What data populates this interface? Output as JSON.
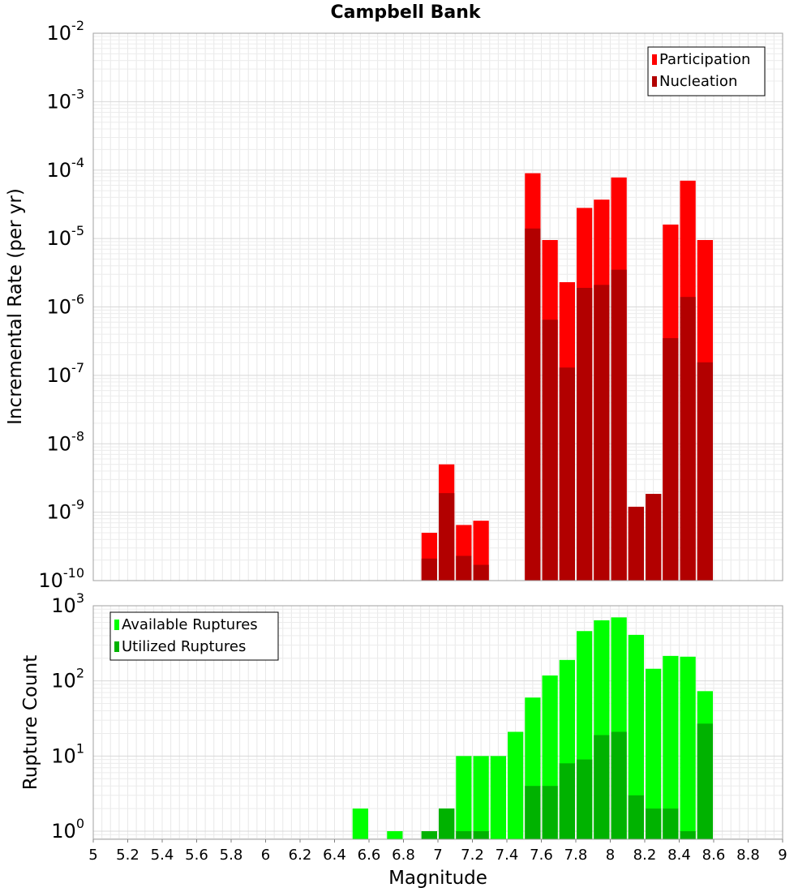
{
  "chart_data": [
    {
      "type": "bar",
      "title": "Campbell Bank",
      "xlabel": "",
      "ylabel": "Incremental Rate (per yr)",
      "xlim": [
        5,
        9
      ],
      "ylim": [
        1e-10,
        0.01
      ],
      "yscale": "log",
      "bin_width": 0.1,
      "grid": true,
      "legend_position": "top-right",
      "y_ticks": [
        {
          "base": "10",
          "exp": "-10"
        },
        {
          "base": "10",
          "exp": "-9"
        },
        {
          "base": "10",
          "exp": "-8"
        },
        {
          "base": "10",
          "exp": "-7"
        },
        {
          "base": "10",
          "exp": "-6"
        },
        {
          "base": "10",
          "exp": "-5"
        },
        {
          "base": "10",
          "exp": "-4"
        },
        {
          "base": "10",
          "exp": "-3"
        },
        {
          "base": "10",
          "exp": "-2"
        }
      ],
      "series": [
        {
          "name": "Participation",
          "color": "#ff0000",
          "points": [
            {
              "x": 6.95,
              "y": 5e-10
            },
            {
              "x": 7.05,
              "y": 5e-09
            },
            {
              "x": 7.15,
              "y": 6.5e-10
            },
            {
              "x": 7.25,
              "y": 7.5e-10
            },
            {
              "x": 7.55,
              "y": 9e-05
            },
            {
              "x": 7.65,
              "y": 9.5e-06
            },
            {
              "x": 7.75,
              "y": 2.3e-06
            },
            {
              "x": 7.85,
              "y": 2.8e-05
            },
            {
              "x": 7.95,
              "y": 3.7e-05
            },
            {
              "x": 8.05,
              "y": 7.8e-05
            },
            {
              "x": 8.15,
              "y": 1.2e-09
            },
            {
              "x": 8.25,
              "y": 1.85e-09
            },
            {
              "x": 8.35,
              "y": 1.6e-05
            },
            {
              "x": 8.45,
              "y": 7e-05
            },
            {
              "x": 8.55,
              "y": 9.5e-06
            }
          ]
        },
        {
          "name": "Nucleation",
          "color": "#b20000",
          "points": [
            {
              "x": 6.95,
              "y": 2.1e-10
            },
            {
              "x": 7.05,
              "y": 1.9e-09
            },
            {
              "x": 7.15,
              "y": 2.3e-10
            },
            {
              "x": 7.25,
              "y": 1.7e-10
            },
            {
              "x": 7.55,
              "y": 1.4e-05
            },
            {
              "x": 7.65,
              "y": 6.5e-07
            },
            {
              "x": 7.75,
              "y": 1.3e-07
            },
            {
              "x": 7.85,
              "y": 1.9e-06
            },
            {
              "x": 7.95,
              "y": 2.1e-06
            },
            {
              "x": 8.05,
              "y": 3.5e-06
            },
            {
              "x": 8.15,
              "y": 1.2e-09
            },
            {
              "x": 8.25,
              "y": 1.85e-09
            },
            {
              "x": 8.35,
              "y": 3.5e-07
            },
            {
              "x": 8.45,
              "y": 1.4e-06
            },
            {
              "x": 8.55,
              "y": 1.55e-07
            }
          ]
        }
      ]
    },
    {
      "type": "bar",
      "title": "",
      "xlabel": "Magnitude",
      "ylabel": "Rupture Count",
      "xlim": [
        5,
        9
      ],
      "ylim": [
        0.78,
        1000
      ],
      "yscale": "log",
      "bin_width": 0.1,
      "grid": true,
      "legend_position": "top-left",
      "y_ticks": [
        {
          "base": "10",
          "exp": "0"
        },
        {
          "base": "10",
          "exp": "1"
        },
        {
          "base": "10",
          "exp": "2"
        },
        {
          "base": "10",
          "exp": "3"
        }
      ],
      "x_ticks": [
        "5",
        "5.2",
        "5.4",
        "5.6",
        "5.8",
        "6",
        "6.2",
        "6.4",
        "6.6",
        "6.8",
        "7",
        "7.2",
        "7.4",
        "7.6",
        "7.8",
        "8",
        "8.2",
        "8.4",
        "8.6",
        "8.8",
        "9"
      ],
      "series": [
        {
          "name": "Available Ruptures",
          "color": "#00ff00",
          "points": [
            {
              "x": 6.55,
              "y": 2
            },
            {
              "x": 6.75,
              "y": 1
            },
            {
              "x": 6.95,
              "y": 1
            },
            {
              "x": 7.05,
              "y": 2
            },
            {
              "x": 7.15,
              "y": 10
            },
            {
              "x": 7.25,
              "y": 10
            },
            {
              "x": 7.35,
              "y": 10
            },
            {
              "x": 7.45,
              "y": 21
            },
            {
              "x": 7.55,
              "y": 60
            },
            {
              "x": 7.65,
              "y": 118
            },
            {
              "x": 7.75,
              "y": 190
            },
            {
              "x": 7.85,
              "y": 460
            },
            {
              "x": 7.95,
              "y": 640
            },
            {
              "x": 8.05,
              "y": 700
            },
            {
              "x": 8.15,
              "y": 410
            },
            {
              "x": 8.25,
              "y": 145
            },
            {
              "x": 8.35,
              "y": 215
            },
            {
              "x": 8.45,
              "y": 210
            },
            {
              "x": 8.55,
              "y": 73
            }
          ]
        },
        {
          "name": "Utilized Ruptures",
          "color": "#00b200",
          "points": [
            {
              "x": 6.95,
              "y": 1
            },
            {
              "x": 7.05,
              "y": 2
            },
            {
              "x": 7.15,
              "y": 1
            },
            {
              "x": 7.25,
              "y": 1
            },
            {
              "x": 7.55,
              "y": 4
            },
            {
              "x": 7.65,
              "y": 4
            },
            {
              "x": 7.75,
              "y": 8
            },
            {
              "x": 7.85,
              "y": 9
            },
            {
              "x": 7.95,
              "y": 19
            },
            {
              "x": 8.05,
              "y": 21
            },
            {
              "x": 8.15,
              "y": 3
            },
            {
              "x": 8.25,
              "y": 2
            },
            {
              "x": 8.35,
              "y": 2
            },
            {
              "x": 8.45,
              "y": 1
            },
            {
              "x": 8.55,
              "y": 27
            }
          ]
        }
      ]
    }
  ]
}
